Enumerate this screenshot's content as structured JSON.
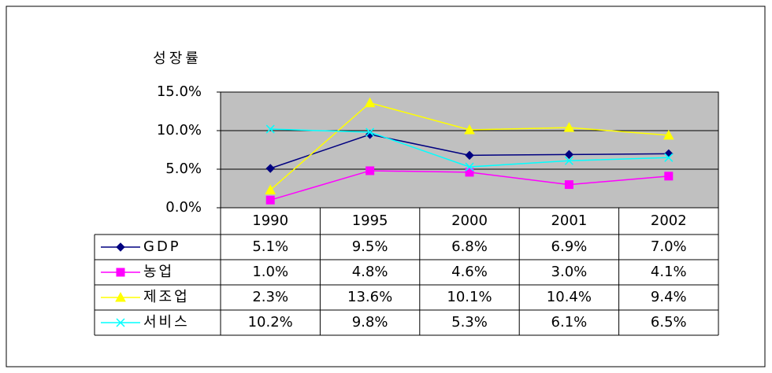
{
  "chart_data": {
    "type": "line",
    "title": "성장률",
    "categories": [
      "1990",
      "1995",
      "2000",
      "2001",
      "2002"
    ],
    "ylim": [
      0,
      15
    ],
    "yticks": [
      {
        "value": 0,
        "label": "0.0%"
      },
      {
        "value": 5,
        "label": "5.0%"
      },
      {
        "value": 10,
        "label": "10.0%"
      },
      {
        "value": 15,
        "label": "15.0%"
      }
    ],
    "grid": true,
    "plot_background": "#c0c0c0",
    "series": [
      {
        "name": "GDP",
        "color": "#000080",
        "marker": "diamond",
        "values": [
          5.1,
          9.5,
          6.8,
          6.9,
          7.0
        ],
        "value_labels": [
          "5.1%",
          "9.5%",
          "6.8%",
          "6.9%",
          "7.0%"
        ]
      },
      {
        "name": "농업",
        "color": "#ff00ff",
        "marker": "square",
        "values": [
          1.0,
          4.8,
          4.6,
          3.0,
          4.1
        ],
        "value_labels": [
          "1.0%",
          "4.8%",
          "4.6%",
          "3.0%",
          "4.1%"
        ]
      },
      {
        "name": "제조업",
        "color": "#ffff00",
        "marker": "triangle",
        "values": [
          2.3,
          13.6,
          10.1,
          10.4,
          9.4
        ],
        "value_labels": [
          "2.3%",
          "13.6%",
          "10.1%",
          "10.4%",
          "9.4%"
        ]
      },
      {
        "name": "서비스",
        "color": "#00ffff",
        "marker": "x",
        "values": [
          10.2,
          9.8,
          5.3,
          6.1,
          6.5
        ],
        "value_labels": [
          "10.2%",
          "9.8%",
          "5.3%",
          "6.1%",
          "6.5%"
        ]
      }
    ]
  }
}
